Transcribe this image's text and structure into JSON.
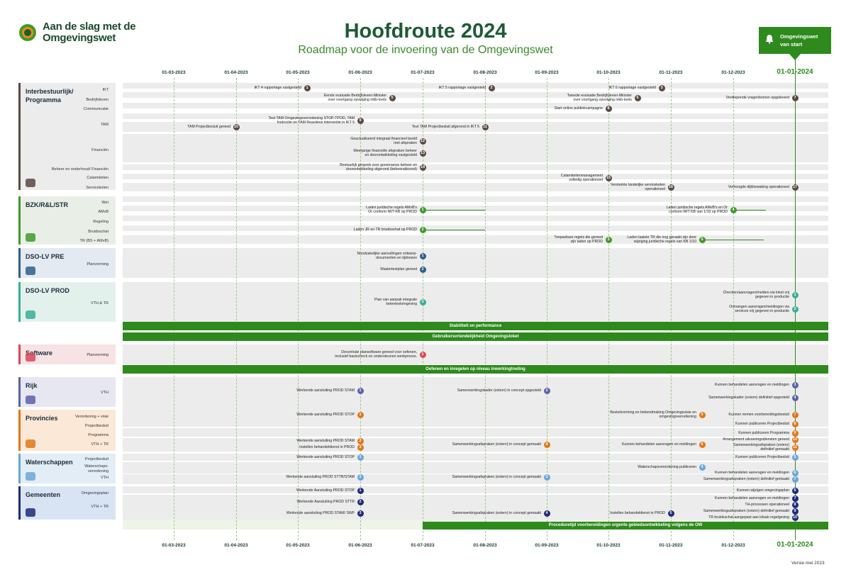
{
  "logo": {
    "line1": "Aan de slag met de",
    "line2": "Omgevingswet"
  },
  "title": "Hoofdroute 2024",
  "subtitle": "Roadmap voor de invoering van de Omgevingswet",
  "flag": {
    "line1": "Omgevingswet",
    "line2": "van start"
  },
  "dates": [
    "01-03-2023",
    "01-04-2023",
    "01-05-2023",
    "01-06-2023",
    "01-07-2023",
    "01-08-2023",
    "01-09-2023",
    "01-10-2023",
    "01-11-2023",
    "01-12-2023"
  ],
  "final_date": "01-01-2024",
  "version": "Versie mei 2023",
  "colors": {
    "green": "#2e8a1d",
    "ib": "#5b4a42",
    "bzk": "#3f9a2a",
    "pre": "#2f5f8a",
    "prod": "#3aae9a",
    "software": "#d8485a",
    "rijk": "#5a62a8",
    "prov": "#e07818",
    "water": "#6aa7d8",
    "gem": "#1f2a7a"
  },
  "lanes": [
    {
      "key": "ib",
      "title_l1": "Interbestuurlijk/",
      "title_l2": "Programma",
      "subs": [
        "IKT",
        "Bedrijfsleven",
        "Communicatie",
        "TAM",
        "Financiën",
        "Beheer en onderhoud/ Financiën",
        "Calamiteiten",
        "Serviceketen"
      ]
    },
    {
      "key": "bzk",
      "title_l1": "BZK/R&L/STR",
      "title_l2": "",
      "subs": [
        "Wet",
        "AMvB",
        "Regeling",
        "Bruidsschat",
        "TR (BS + AMvB)"
      ]
    },
    {
      "key": "pre",
      "title_l1": "DSO-LV PRE",
      "title_l2": "",
      "subs": [
        "Planvorming"
      ]
    },
    {
      "key": "prod",
      "title_l1": "DSO-LV PROD",
      "title_l2": "",
      "subs": [
        "VTH & TR"
      ]
    },
    {
      "key": "software",
      "title_l1": "Software",
      "title_l2": "",
      "subs": [
        "Planvorming"
      ]
    },
    {
      "key": "rijk",
      "title_l1": "Rijk",
      "title_l2": "",
      "subs": [
        "VTH"
      ]
    },
    {
      "key": "prov",
      "title_l1": "Provincies",
      "title_l2": "",
      "subs": [
        "Verordening + visie",
        "Projectbesluit",
        "Programma",
        "VTH + TR"
      ]
    },
    {
      "key": "water",
      "title_l1": "Waterschappen",
      "title_l2": "",
      "subs": [
        "Projectbesluit",
        "Waterschaps-",
        "verordening",
        "VTH"
      ]
    },
    {
      "key": "gem",
      "title_l1": "Gemeenten",
      "title_l2": "",
      "subs": [
        "Omgevingsplan",
        "VTH + TR"
      ]
    }
  ],
  "bars": {
    "b1": "Stabiliteit en performance",
    "b2": "Gebruikersvriendelijkheid Omgevingsloket",
    "b3": "Oefenen en inregelen op niveau inwerkingtreding",
    "b4": "Proceduretijd voorbereidingen urgente gebiedsontwikkeling volgens de OW"
  },
  "events": [
    {
      "n": "1",
      "c": "ib",
      "t": "IKT 4 rapportage vastgesteld"
    },
    {
      "n": "2",
      "c": "ib",
      "t": "IKT 5 rapportage vastgesteld"
    },
    {
      "n": "3",
      "c": "ib",
      "t": "IKT 6 rapportage vastgesteld"
    },
    {
      "n": "5",
      "c": "ib",
      "t": "Eerste evaluatie Bedrijfsleven-Minister",
      "t2": "over voortgang opvolging mkb-toets"
    },
    {
      "n": "6",
      "c": "ib",
      "t": "Tweede evaluatie Bedrijfsleven-Minister",
      "t2": "over voortgang opvolging mkb-toets"
    },
    {
      "n": "7",
      "c": "ib",
      "t": "Verdiepende vragenbomen opgeleverd"
    },
    {
      "n": "8",
      "c": "ib",
      "t": "Start online publiekcampagne"
    },
    {
      "n": "9",
      "c": "ib",
      "t": "Test TAM Omgevingsverordening STOP-TPOD, TAM",
      "t2": "Instructie en TAM Reactieve interventie in IKT 5"
    },
    {
      "n": "10",
      "c": "ib",
      "t": "TAM Projectbesluit gereed"
    },
    {
      "n": "11",
      "c": "ib",
      "t": "Test TAM Projectbesluit afgerond in IKT 5"
    },
    {
      "n": "12",
      "c": "ib",
      "t": "Geactualiseerd integraal financieel beeld",
      "t2": "met afspraken"
    },
    {
      "n": "13",
      "c": "ib",
      "t": "Meerjarige financiële afspraken beheer",
      "t2": "en doorontwikkeling vastgesteld"
    },
    {
      "n": "14",
      "c": "ib",
      "t": "Bestuurlijk gesprek over governance beheer en",
      "t2": "doorontwikkeling afgerond (beheerakkoord)"
    },
    {
      "n": "15",
      "c": "ib",
      "t": "Calamiteitenmanagement",
      "t2": "volledig operationeel"
    },
    {
      "n": "16",
      "c": "ib",
      "t": "Versterkte landelijke serviceketen",
      "t2": "operationeel"
    },
    {
      "n": "17",
      "c": "ib",
      "t": "Verhoogde dijkbewaking operationeel"
    },
    {
      "n": "1",
      "c": "bzk",
      "t": "Laden juridische regels AMvB's",
      "t2": "Or conform IWT-KB op PROD"
    },
    {
      "n": "4",
      "c": "bzk",
      "t": "Laden juridische regels AMvB's en Or",
      "t2": "conform IWT KB van 1/10 op PROD"
    },
    {
      "n": "2",
      "c": "bzk",
      "t": "Laden JR en TR bruidsschat op PROD"
    },
    {
      "n": "3",
      "c": "bzk",
      "t": "Toepasbare regels die gereed",
      "t2": "zijn laden op PROD"
    },
    {
      "n": "5",
      "c": "bzk",
      "t": "Laden laatste TR die nog geraakt zijn door",
      "t2": "wijziging juridische regels van KB 1/10"
    },
    {
      "n": "1",
      "c": "pre",
      "t": "Noodzakelijke aanvullingen ontwerp-",
      "t2": "documenten en tijdreizen"
    },
    {
      "n": "2",
      "c": "pre",
      "t": "Mastertestplan gereed"
    },
    {
      "n": "3",
      "c": "prod",
      "t": "Plan van aanpak integrale",
      "t2": "ketentestomgeving"
    },
    {
      "n": "1",
      "c": "prod",
      "t": "Checken/aanvragen/melden via loket vrij",
      "t2": "gegeven in productie"
    },
    {
      "n": "2",
      "c": "prod",
      "t": "Ontvangen aanvragen/meldingen via",
      "t2": "services vrij gegeven in productie"
    },
    {
      "n": "1",
      "c": "software",
      "t": "Decentrale plansoftware gereed voor oefenen,",
      "t2": "inclusief basischeck en ondersteunen werkproces."
    },
    {
      "n": "1",
      "c": "rijk",
      "t": "Werkende aansluiting PROD STAM"
    },
    {
      "n": "2",
      "c": "rijk",
      "t": "Samenwerkingskader (extern) in concept opgesteld"
    },
    {
      "n": "3",
      "c": "rijk",
      "t": "Kunnen behandelen aanvragen en meldingen"
    },
    {
      "n": "4",
      "c": "rijk",
      "t": "Samenwerkingskader (extern) definitief opgesteld"
    },
    {
      "n": "1",
      "c": "prov",
      "t": "Werkende aansluiting PROD STOP"
    },
    {
      "n": "5",
      "c": "prov",
      "t": "Besluitvorming en bekendmaking Omgevingsvisie en",
      "t2": "omgevingsverordening"
    },
    {
      "n": "7",
      "c": "prov",
      "t": "Kunnen nemen voorbereidingsbesluit"
    },
    {
      "n": "8",
      "c": "prov",
      "t": "Kunnen publiceren Projectbesluit"
    },
    {
      "n": "9",
      "c": "prov",
      "t": "Kunnen publiceren Programma"
    },
    {
      "n": "2",
      "c": "prov",
      "t": "Werkende aansluiting PROD STAM"
    },
    {
      "n": "3",
      "c": "prov",
      "t": "Instellen behandeldienst in PROD"
    },
    {
      "n": "4",
      "c": "prov",
      "t": "Samenwerkingsafspraken (extern) in concept gemaakt"
    },
    {
      "n": "6",
      "c": "prov",
      "t": "Kunnen behandelen aanvragen en meldingen"
    },
    {
      "n": "10",
      "c": "prov",
      "t": "Arrangement uitvoeringsdiensten gereed"
    },
    {
      "n": "11",
      "c": "prov",
      "t": "Samenwerkingsafspraken (extern)",
      "t2": "definitief gemaakt"
    },
    {
      "n": "1",
      "c": "water",
      "t": "Werkende aansluiting PROD STOP"
    },
    {
      "n": "5",
      "c": "water",
      "t": "Kunnen publiceren Projectbesluit"
    },
    {
      "n": "4",
      "c": "water",
      "t": "Waterschapsverordening publiceren"
    },
    {
      "n": "2",
      "c": "water",
      "t": "Werkende aansluiting PROD STTR/STAM"
    },
    {
      "n": "3",
      "c": "water",
      "t": "Samenwerkingsafspraken (extern) in concept gemaakt"
    },
    {
      "n": "6",
      "c": "water",
      "t": "Kunnen behandelen aanvragen en meldingen"
    },
    {
      "n": "7",
      "c": "water",
      "t": "Samenwerkingsafspraken (extern) definitief gemaakt"
    },
    {
      "n": "1",
      "c": "gem",
      "t": "Werkende Aansluiting PROD STOP"
    },
    {
      "n": "2",
      "c": "gem",
      "t": "Werkende Aansluiting PROD STTR"
    },
    {
      "n": "3",
      "c": "gem",
      "t": "Werkende aansluiting PROD STAM/ SWF"
    },
    {
      "n": "4",
      "c": "gem",
      "t": "Samenwerkingsafspraken (extern) in concept gemaakt"
    },
    {
      "n": "5",
      "c": "gem",
      "t": "Instellen behandeldienst in PROD"
    },
    {
      "n": "6",
      "c": "gem",
      "t": "Kunnen wijzigen omgevingsplan"
    },
    {
      "n": "7",
      "c": "gem",
      "t": "Kunnen behandelen aanvragen en meldingen"
    },
    {
      "n": "8",
      "c": "gem",
      "t": "TH-processen operationeel"
    },
    {
      "n": "9",
      "c": "gem",
      "t": "Samenwerkingsafspraken (extern) definitief gemaakt"
    },
    {
      "n": "10",
      "c": "gem",
      "t": "TR bruidsschat aangepast aan lokale regelgeving"
    }
  ]
}
